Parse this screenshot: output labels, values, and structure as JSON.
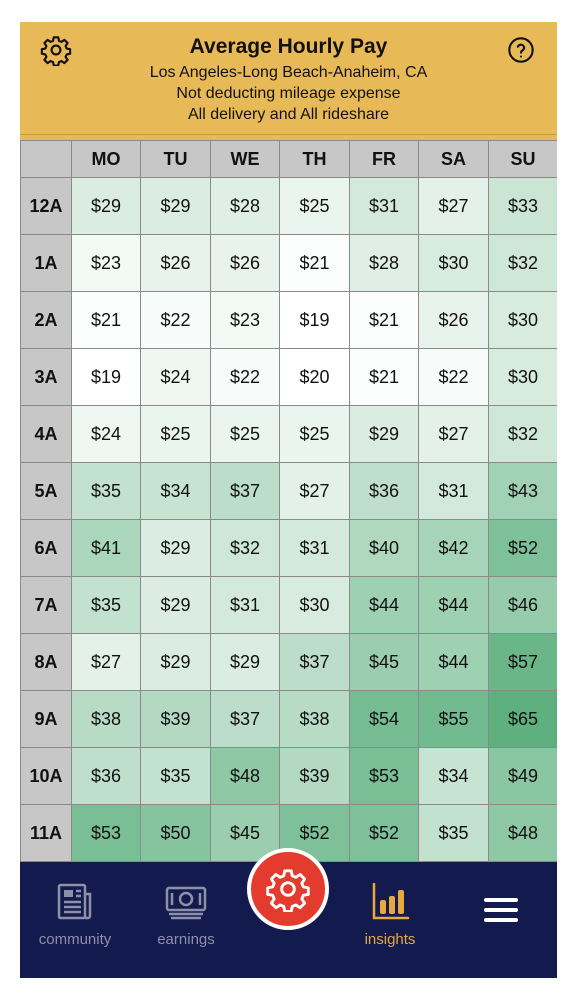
{
  "header": {
    "title": "Average Hourly Pay",
    "location": "Los Angeles-Long Beach-Anaheim, CA",
    "mileage_note": "Not deducting mileage expense",
    "filter_note": "All delivery and All rideshare",
    "settings_icon": "gear-icon",
    "help_icon": "question-circle-icon"
  },
  "grid": {
    "days": [
      "MO",
      "TU",
      "WE",
      "TH",
      "FR",
      "SA",
      "SU"
    ],
    "rows": [
      {
        "hour": "12A",
        "values": [
          "$29",
          "$29",
          "$28",
          "$25",
          "$31",
          "$27",
          "$33"
        ]
      },
      {
        "hour": "1A",
        "values": [
          "$23",
          "$26",
          "$26",
          "$21",
          "$28",
          "$30",
          "$32"
        ]
      },
      {
        "hour": "2A",
        "values": [
          "$21",
          "$22",
          "$23",
          "$19",
          "$21",
          "$26",
          "$30"
        ]
      },
      {
        "hour": "3A",
        "values": [
          "$19",
          "$24",
          "$22",
          "$20",
          "$21",
          "$22",
          "$30"
        ]
      },
      {
        "hour": "4A",
        "values": [
          "$24",
          "$25",
          "$25",
          "$25",
          "$29",
          "$27",
          "$32"
        ]
      },
      {
        "hour": "5A",
        "values": [
          "$35",
          "$34",
          "$37",
          "$27",
          "$36",
          "$31",
          "$43"
        ]
      },
      {
        "hour": "6A",
        "values": [
          "$41",
          "$29",
          "$32",
          "$31",
          "$40",
          "$42",
          "$52"
        ]
      },
      {
        "hour": "7A",
        "values": [
          "$35",
          "$29",
          "$31",
          "$30",
          "$44",
          "$44",
          "$46"
        ]
      },
      {
        "hour": "8A",
        "values": [
          "$27",
          "$29",
          "$29",
          "$37",
          "$45",
          "$44",
          "$57"
        ]
      },
      {
        "hour": "9A",
        "values": [
          "$38",
          "$39",
          "$37",
          "$38",
          "$54",
          "$55",
          "$65"
        ]
      },
      {
        "hour": "10A",
        "values": [
          "$36",
          "$35",
          "$48",
          "$39",
          "$53",
          "$34",
          "$49"
        ]
      },
      {
        "hour": "11A",
        "values": [
          "$53",
          "$50",
          "$45",
          "$52",
          "$52",
          "$35",
          "$48"
        ]
      }
    ]
  },
  "nav": {
    "items": [
      {
        "label": "community",
        "icon": "newspaper-icon"
      },
      {
        "label": "earnings",
        "icon": "cash-icon"
      },
      {
        "label": "insights",
        "icon": "bar-chart-icon",
        "active": true
      },
      {
        "label": "",
        "icon": "hamburger-menu-icon"
      }
    ],
    "fab_icon": "gear-icon"
  },
  "colors": {
    "header_bg": "#e8b957",
    "nav_bg": "#131a4e",
    "nav_active": "#e7a93f",
    "fab_bg": "#e33b2e",
    "heat_low": "#ffffff",
    "heat_high": "#5eb07f"
  }
}
